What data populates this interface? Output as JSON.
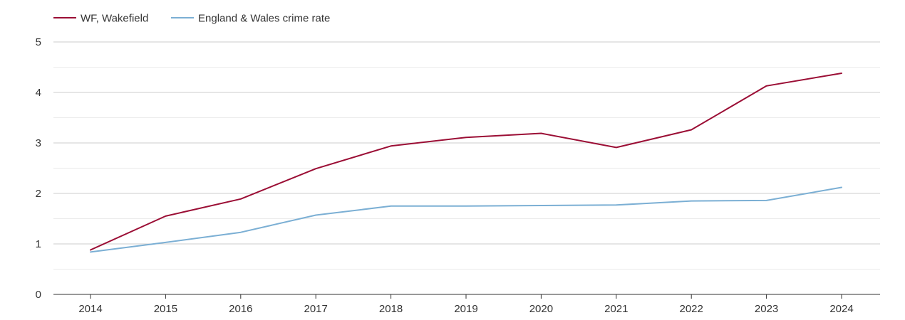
{
  "chart_data": {
    "type": "line",
    "title": "",
    "xlabel": "",
    "ylabel": "",
    "categories": [
      "2014",
      "2015",
      "2016",
      "2017",
      "2018",
      "2019",
      "2020",
      "2021",
      "2022",
      "2023",
      "2024"
    ],
    "ylim": [
      0,
      5
    ],
    "yticks": [
      "0",
      "1",
      "2",
      "3",
      "4",
      "5"
    ],
    "grid": true,
    "legend_position": "top-left",
    "series": [
      {
        "name": "WF, Wakefield",
        "color": "#9b0e35",
        "values": [
          0.88,
          1.55,
          1.89,
          2.49,
          2.94,
          3.11,
          3.19,
          2.91,
          3.26,
          4.13,
          4.38
        ]
      },
      {
        "name": "England & Wales crime rate",
        "color": "#7bafd4",
        "values": [
          0.84,
          1.03,
          1.23,
          1.57,
          1.75,
          1.75,
          1.76,
          1.77,
          1.85,
          1.86,
          2.12
        ]
      }
    ]
  }
}
